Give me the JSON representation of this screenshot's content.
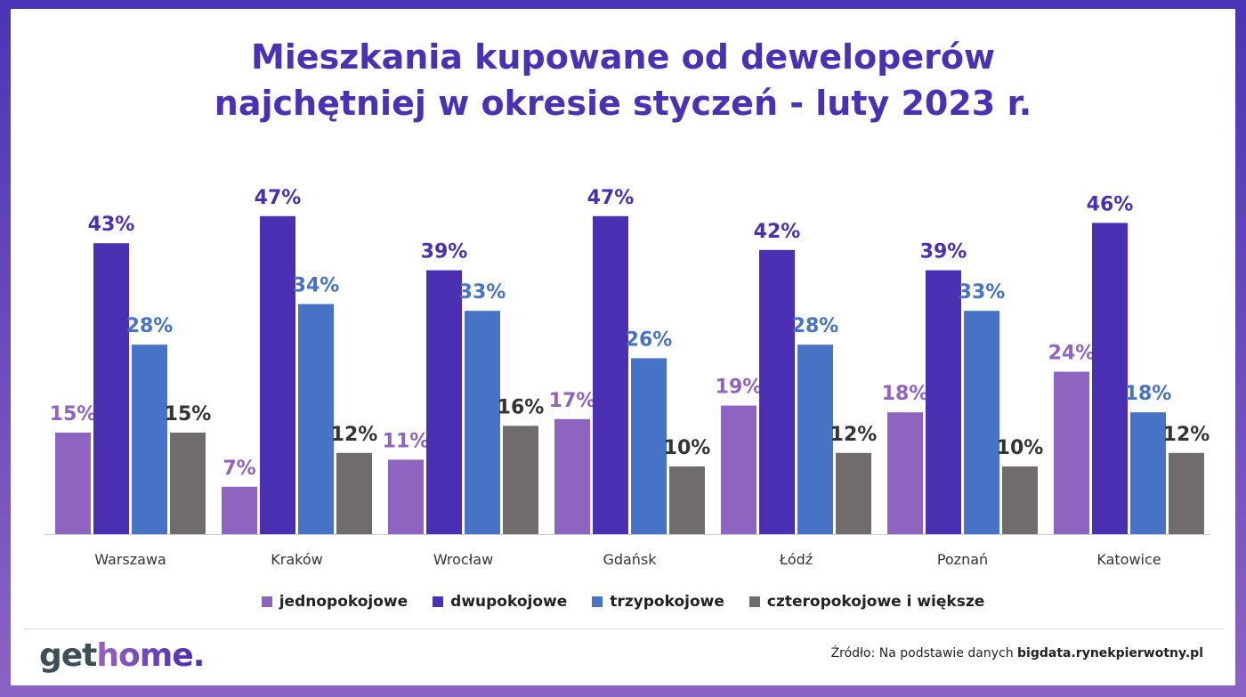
{
  "title_line1": "Mieszkania kupowane od deweloperów",
  "title_line2": "najchętniej w okresie styczeń - luty 2023 r.",
  "chart_data": {
    "type": "bar",
    "title": "Mieszkania kupowane od deweloperów najchętniej w okresie styczeń - luty 2023 r.",
    "categories": [
      "Warszawa",
      "Kraków",
      "Wrocław",
      "Gdańsk",
      "Łódź",
      "Poznań",
      "Katowice"
    ],
    "series": [
      {
        "name": "jednopokojowe",
        "color": "#8f63c0",
        "label_color": "#8f63c0",
        "values": [
          15,
          7,
          11,
          17,
          19,
          18,
          24
        ]
      },
      {
        "name": "dwupokojowe",
        "color": "#4a2fb3",
        "label_color": "#4a2fb3",
        "values": [
          43,
          47,
          39,
          47,
          42,
          39,
          46
        ]
      },
      {
        "name": "trzypokojowe",
        "color": "#4673c6",
        "label_color": "#4673c6",
        "values": [
          28,
          34,
          33,
          26,
          28,
          33,
          18
        ]
      },
      {
        "name": "czteropokojowe i większe",
        "color": "#716c6c",
        "label_color": "#333333",
        "values": [
          15,
          12,
          16,
          10,
          12,
          10,
          12
        ]
      }
    ],
    "value_suffix": "%",
    "ylim": [
      0,
      50
    ],
    "grid": false,
    "legend": "bottom"
  },
  "logo": {
    "part1": "get",
    "part2": "home",
    "dot": "."
  },
  "source": {
    "prefix": "Źródło: Na podstawie danych ",
    "site": "bigdata.rynekpierwotny.pl"
  }
}
